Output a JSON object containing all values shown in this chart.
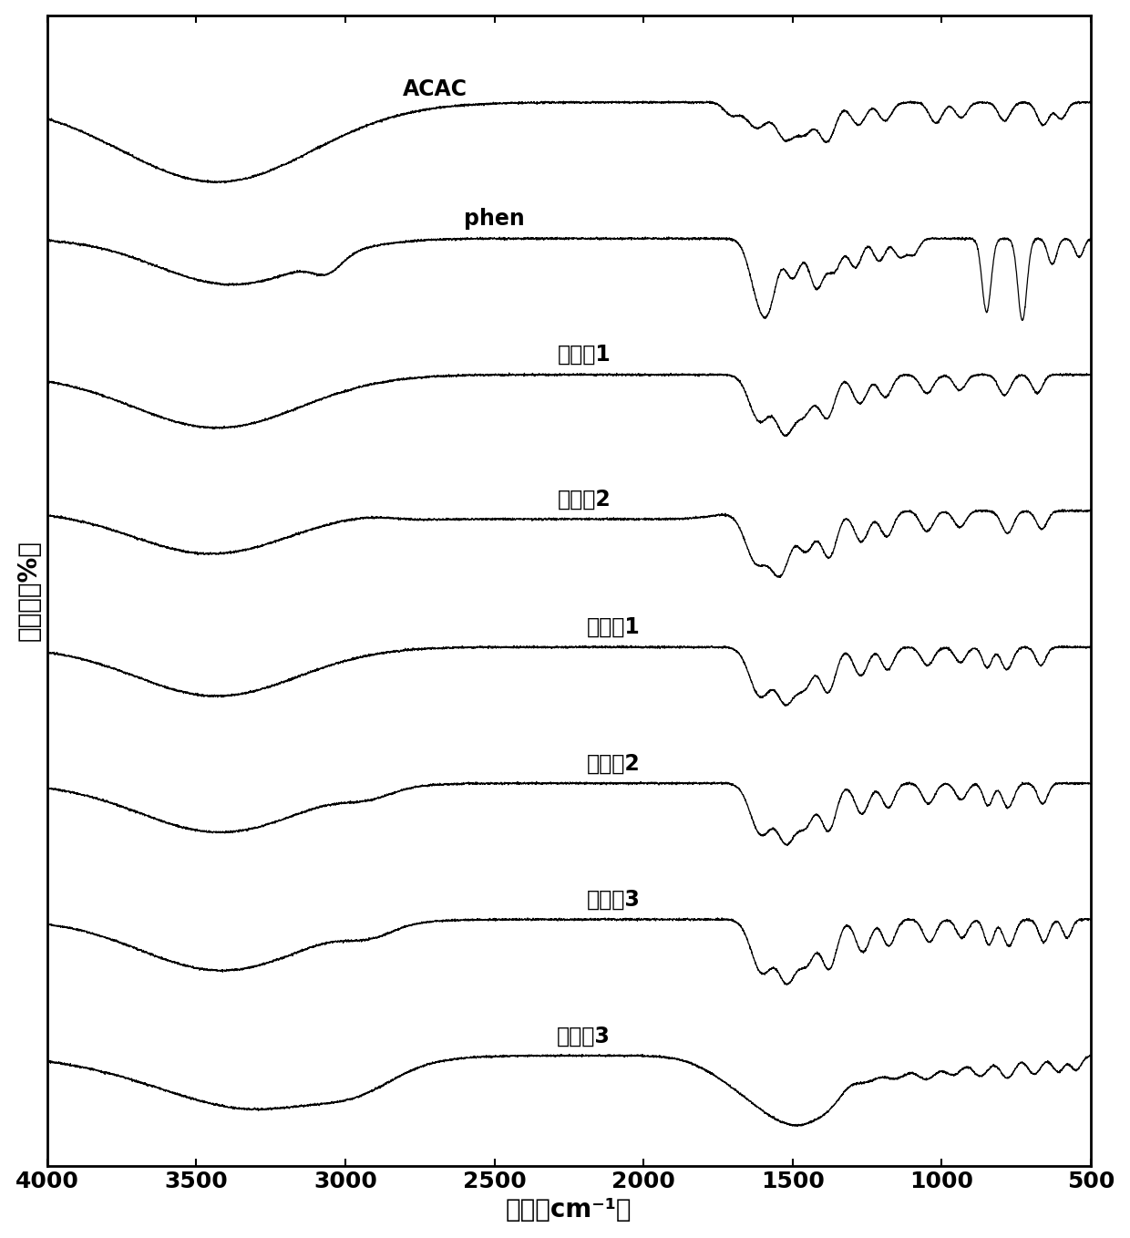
{
  "xlabel": "波数（cm⁻¹）",
  "ylabel": "透光率（%）",
  "xmin": 500,
  "xmax": 4000,
  "xticks": [
    4000,
    3500,
    3000,
    2500,
    2000,
    1500,
    1000,
    500
  ],
  "labels": [
    "ACAC",
    "phen",
    "对比例1",
    "对比例2",
    "实施例1",
    "实施例2",
    "实施例3",
    "对比例3"
  ],
  "background_color": "#ffffff",
  "line_color": "#000000",
  "font_size_label": 20,
  "font_size_tick": 18,
  "font_size_annot": 17
}
